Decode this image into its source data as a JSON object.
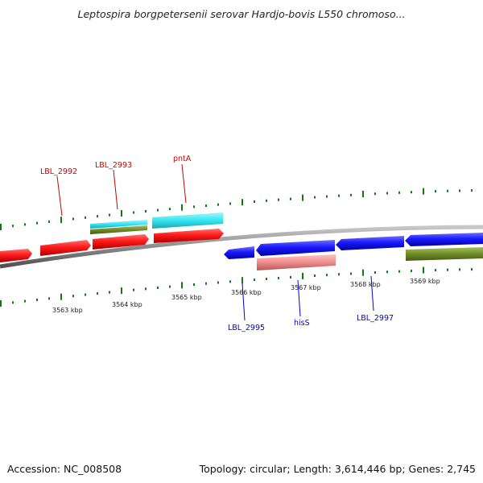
{
  "title": "Leptospira borgpetersenii serovar Hardjo-bovis L550 chromoso...",
  "footer": {
    "accession": "Accession: NC_008508",
    "summary": "Topology: circular; Length: 3,614,446 bp; Genes: 2,745"
  },
  "colors": {
    "forward_gene": "#ff1a1a",
    "reverse_gene": "#1a1aff",
    "cyan_feature": "#33e6f0",
    "pink_feature": "#f08c8c",
    "olive_feature": "#6e8c28",
    "backbone": "#8c8c8c",
    "tick": "#0f7a0f",
    "forward_label": "#cc0000",
    "reverse_label": "#0000cc"
  },
  "kbp_labels": [
    "3563 kbp",
    "3564 kbp",
    "3565 kbp",
    "3566 kbp",
    "3567 kbp",
    "3568 kbp",
    "3569 kbp"
  ],
  "gene_labels": {
    "top": [
      "LBL_2992",
      "LBL_2993",
      "pntA"
    ],
    "bottom": [
      "LBL_2995",
      "hisS",
      "LBL_2997"
    ]
  }
}
